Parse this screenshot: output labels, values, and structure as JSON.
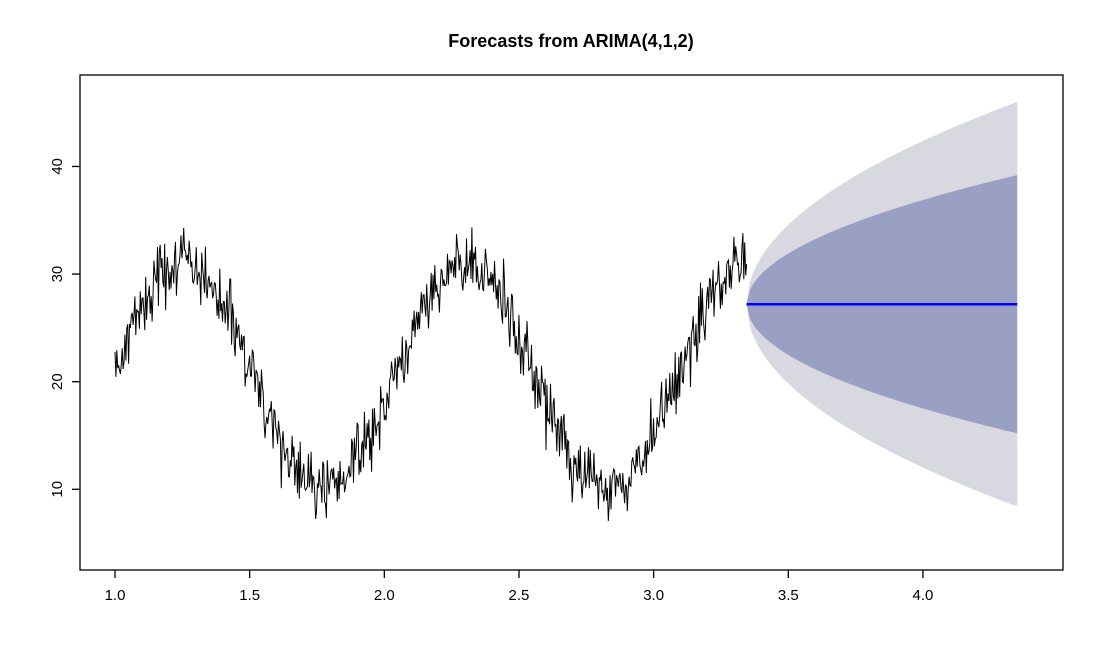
{
  "chart_data": {
    "type": "line",
    "title": "Forecasts from ARIMA(4,1,2)",
    "xlabel": "",
    "ylabel": "",
    "xlim": [
      0.87,
      4.52
    ],
    "ylim": [
      2.5,
      48.5
    ],
    "x_ticks": [
      1.0,
      1.5,
      2.0,
      2.5,
      3.0,
      3.5,
      4.0
    ],
    "x_tick_labels": [
      "1.0",
      "1.5",
      "2.0",
      "2.5",
      "3.0",
      "3.5",
      "4.0"
    ],
    "y_ticks": [
      10,
      20,
      30,
      40
    ],
    "y_tick_labels": [
      "10",
      "20",
      "30",
      "40"
    ],
    "grid": false,
    "legend": "none",
    "background_color": "#ffffff",
    "box_color": "#000000",
    "observed": {
      "description": "noisy sinusoidal time series",
      "color": "#000000",
      "x_start": 1.0,
      "x_end": 3.345,
      "n_points": 700,
      "pattern": "sinusoid_plus_noise",
      "mean": 20.5,
      "amplitude": 10.5,
      "period": 1.05,
      "peak_x": 1.25,
      "noise_sd": 1.5,
      "approx_min": 5,
      "approx_max": 35.5
    },
    "forecast": {
      "color": "#0000ff",
      "x_start": 3.345,
      "x_end": 4.35,
      "mean": 27.2,
      "spread_exponent": 0.5,
      "intervals": [
        {
          "level": 95,
          "color": "#d8d8e0",
          "half_width_at_end": 18.8
        },
        {
          "level": 80,
          "color": "#9aa0c3",
          "half_width_at_end": 12.0
        }
      ]
    }
  }
}
